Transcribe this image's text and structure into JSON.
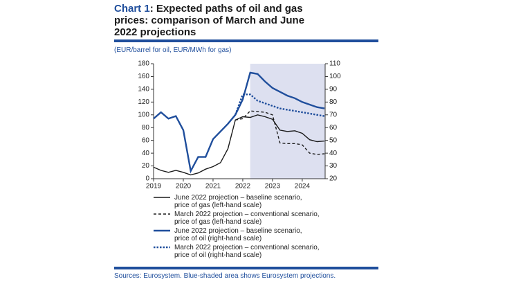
{
  "chart_data": {
    "type": "line",
    "title_label": "Chart 1",
    "title": ": Expected paths of oil and gas prices: comparison of March and June 2022 projections",
    "subtitle": "(EUR/barrel for oil, EUR/MWh for gas)",
    "source": "Sources: Eurosystem. Blue-shaded area shows Eurosystem projections.",
    "x": [
      2019,
      2019.25,
      2019.5,
      2019.75,
      2020,
      2020.25,
      2020.5,
      2020.75,
      2021,
      2021.25,
      2021.5,
      2021.75,
      2022,
      2022.25,
      2022.5,
      2022.75,
      2023,
      2023.25,
      2023.5,
      2023.75,
      2024,
      2024.25,
      2024.5,
      2024.75
    ],
    "xlim": [
      2019,
      2024.77
    ],
    "xticks": [
      2019,
      2020,
      2021,
      2022,
      2023,
      2024
    ],
    "ylim": [
      0,
      180
    ],
    "yticks": [
      0,
      20,
      40,
      60,
      80,
      100,
      120,
      140,
      160,
      180
    ],
    "y2lim": [
      20,
      110
    ],
    "y2ticks": [
      20,
      30,
      40,
      50,
      60,
      70,
      80,
      90,
      100,
      110
    ],
    "shaded_region": {
      "from": 2022.25,
      "to": 2024.77,
      "color": "#dde0f0"
    },
    "series": [
      {
        "name": "June 2022 projection – baseline scenario, price of gas (left-hand scale)",
        "color": "#1a1a1a",
        "style": "solid",
        "values": [
          18,
          13,
          10,
          13,
          10,
          6,
          9,
          15,
          19,
          25,
          47,
          92,
          97,
          96,
          100,
          97,
          93,
          76,
          74,
          75,
          71,
          61,
          58,
          59
        ]
      },
      {
        "name": "March 2022 projection – conventional scenario, price of gas (left-hand scale)",
        "color": "#1a1a1a",
        "style": "dashed",
        "values": [
          null,
          null,
          null,
          null,
          null,
          null,
          null,
          null,
          null,
          null,
          null,
          92,
          94,
          106,
          105,
          104,
          100,
          56,
          55,
          55,
          53,
          40,
          38,
          39
        ]
      },
      {
        "name": "June 2022 projection – baseline scenario, price of oil (right-hand scale)",
        "color": "#1f4e9c",
        "style": "solid",
        "axis": "y2",
        "values": [
          67,
          72,
          67,
          69,
          58,
          26,
          37,
          37,
          51,
          57,
          63,
          70,
          82,
          103,
          102,
          96,
          91,
          88,
          85,
          83,
          80,
          78,
          76,
          75
        ]
      },
      {
        "name": "March 2022 projection – conventional scenario, price of oil (right-hand scale)",
        "color": "#1f4e9c",
        "style": "dotted",
        "axis": "y2",
        "values": [
          null,
          null,
          null,
          null,
          null,
          null,
          null,
          null,
          null,
          null,
          null,
          70,
          86,
          86,
          81,
          79,
          77,
          75,
          74,
          73,
          72,
          71,
          70,
          69
        ]
      }
    ]
  }
}
